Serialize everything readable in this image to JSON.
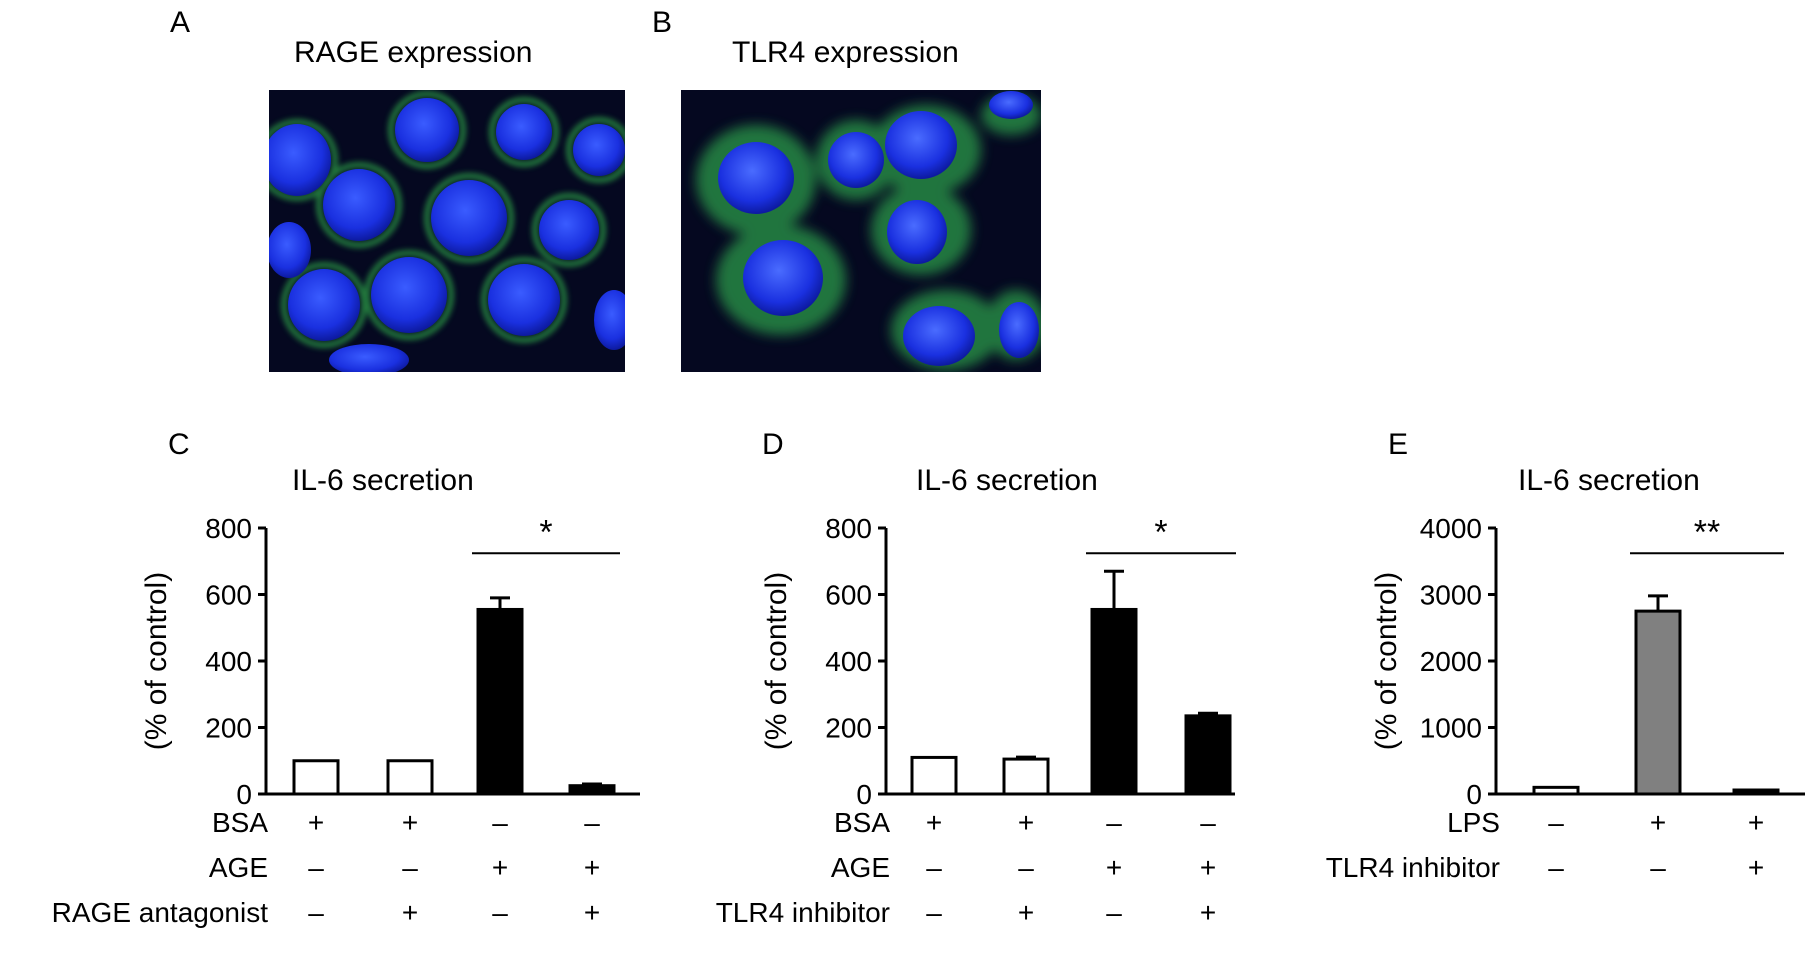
{
  "panels": {
    "A": {
      "letter": "A",
      "title": "RAGE expression"
    },
    "B": {
      "letter": "B",
      "title": "TLR4 expression"
    }
  },
  "chart_data": [
    {
      "panel": "C",
      "type": "bar",
      "title": "IL-6 secretion",
      "ylabel": "(% of control)",
      "ylim": [
        0,
        800
      ],
      "yticks": [
        0,
        200,
        400,
        600,
        800
      ],
      "groups": 4,
      "values": [
        100,
        100,
        555,
        25
      ],
      "errors": [
        0,
        0,
        35,
        5
      ],
      "bar_colors": [
        "#ffffff",
        "#ffffff",
        "#000000",
        "#000000"
      ],
      "significance": {
        "label": "*",
        "from": 2,
        "to": 3
      },
      "conditions": [
        {
          "label": "BSA",
          "signs": [
            "+",
            "+",
            "–",
            "–"
          ]
        },
        {
          "label": "AGE",
          "signs": [
            "–",
            "–",
            "+",
            "+"
          ]
        },
        {
          "label": "RAGE antagonist",
          "signs": [
            "–",
            "+",
            "–",
            "+"
          ]
        }
      ]
    },
    {
      "panel": "D",
      "type": "bar",
      "title": "IL-6 secretion",
      "ylabel": "(% of control)",
      "ylim": [
        0,
        800
      ],
      "yticks": [
        0,
        200,
        400,
        600,
        800
      ],
      "groups": 4,
      "values": [
        110,
        105,
        555,
        235
      ],
      "errors": [
        0,
        6,
        115,
        8
      ],
      "bar_colors": [
        "#ffffff",
        "#ffffff",
        "#000000",
        "#000000"
      ],
      "significance": {
        "label": "*",
        "from": 2,
        "to": 3
      },
      "conditions": [
        {
          "label": "BSA",
          "signs": [
            "+",
            "+",
            "–",
            "–"
          ]
        },
        {
          "label": "AGE",
          "signs": [
            "–",
            "–",
            "+",
            "+"
          ]
        },
        {
          "label": "TLR4 inhibitor",
          "signs": [
            "–",
            "+",
            "–",
            "+"
          ]
        }
      ]
    },
    {
      "panel": "E",
      "type": "bar",
      "title": "IL-6 secretion",
      "ylabel": "(% of control)",
      "ylim": [
        0,
        4000
      ],
      "yticks": [
        0,
        1000,
        2000,
        3000,
        4000
      ],
      "groups": 3,
      "values": [
        100,
        2750,
        60
      ],
      "errors": [
        0,
        230,
        0
      ],
      "bar_colors": [
        "#ffffff",
        "#808080",
        "#000000"
      ],
      "significance": {
        "label": "**",
        "from": 1,
        "to": 2
      },
      "conditions": [
        {
          "label": "LPS",
          "signs": [
            "–",
            "+",
            "+"
          ]
        },
        {
          "label": "TLR4 inhibitor",
          "signs": [
            "–",
            "–",
            "+"
          ]
        }
      ]
    }
  ]
}
